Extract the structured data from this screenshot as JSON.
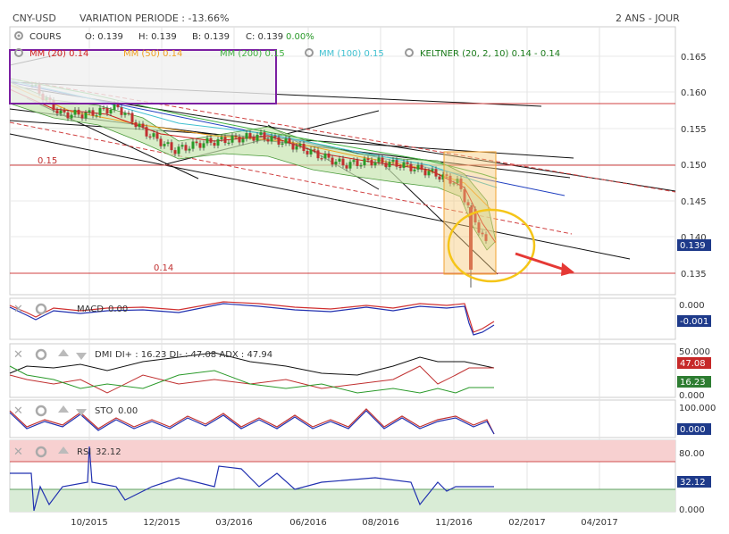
{
  "header": {
    "symbol": "CNY-USD",
    "variation": "VARIATION PERIODE : -13.66%",
    "period": "2 ANS - JOUR"
  },
  "legend": {
    "row1": {
      "cours": "COURS",
      "o": "O: 0.139",
      "h": "H: 0.139",
      "b": "B: 0.139",
      "c": "C: 0.139",
      "c_var": "0.00%"
    },
    "row2": {
      "mm20": "MM (20) 0.14",
      "mm50": "MM (50) 0.14",
      "mm200": "MM (200) 0.15",
      "mm100": "MM (100) 0.15",
      "keltner": "KELTNER (20, 2, 10) 0.14 - 0.14"
    }
  },
  "colors": {
    "up": "#2a9a2a",
    "down": "#c03030",
    "mm20": "#d02020",
    "mm50": "#f0a020",
    "mm100": "#40c0d0",
    "mm200": "#40b040",
    "keltner": "#1a7a1a",
    "accent_red": "#e53935",
    "highlight_yellow": "#f5c518",
    "box_purple": "#7b1fa2"
  },
  "price_axis": {
    "ticks": [
      "0.165",
      "0.160",
      "0.155",
      "0.150",
      "0.145",
      "0.140",
      "0.135"
    ],
    "current": "0.139"
  },
  "levels": {
    "upper": "0.15",
    "lower": "0.14"
  },
  "x_axis": [
    "10/2015",
    "12/2015",
    "03/2016",
    "06/2016",
    "08/2016",
    "11/2016",
    "02/2017",
    "04/2017"
  ],
  "macd": {
    "label": "MACD",
    "value": "0.00",
    "ticks": [
      "0.000"
    ],
    "current": "-0.001"
  },
  "dmi": {
    "label": "DMI",
    "values": "DI+ : 16.23 DI- : 47.08 ADX : 47.94",
    "ticks": [
      "50.000",
      "0.000"
    ],
    "badge_minus": "47.08",
    "badge_plus": "16.23"
  },
  "sto": {
    "label": "STO",
    "value": "0.00",
    "ticks": [
      "100.000",
      "0.000"
    ],
    "current": "0.000"
  },
  "rsi": {
    "label": "RSI",
    "value": "32.12",
    "ticks": [
      "80.00",
      "0.000"
    ],
    "current": "32.12"
  },
  "chart_data": {
    "type": "line",
    "title": "CNY-USD",
    "x_range": [
      "2015-08",
      "2017-05"
    ],
    "ylim": [
      0.132,
      0.168
    ],
    "series": [
      {
        "name": "COURS",
        "x": [
          "2015-08",
          "2015-09",
          "2015-10",
          "2015-11",
          "2015-12",
          "2016-01",
          "2016-02",
          "2016-03",
          "2016-04",
          "2016-05",
          "2016-06",
          "2016-07",
          "2016-08",
          "2016-09",
          "2016-10",
          "2016-11",
          "2016-12"
        ],
        "values": [
          0.161,
          0.157,
          0.157,
          0.158,
          0.1545,
          0.152,
          0.153,
          0.1535,
          0.154,
          0.153,
          0.1515,
          0.15,
          0.1505,
          0.15,
          0.149,
          0.1475,
          0.139
        ]
      }
    ],
    "levels": [
      0.15,
      0.14
    ]
  }
}
